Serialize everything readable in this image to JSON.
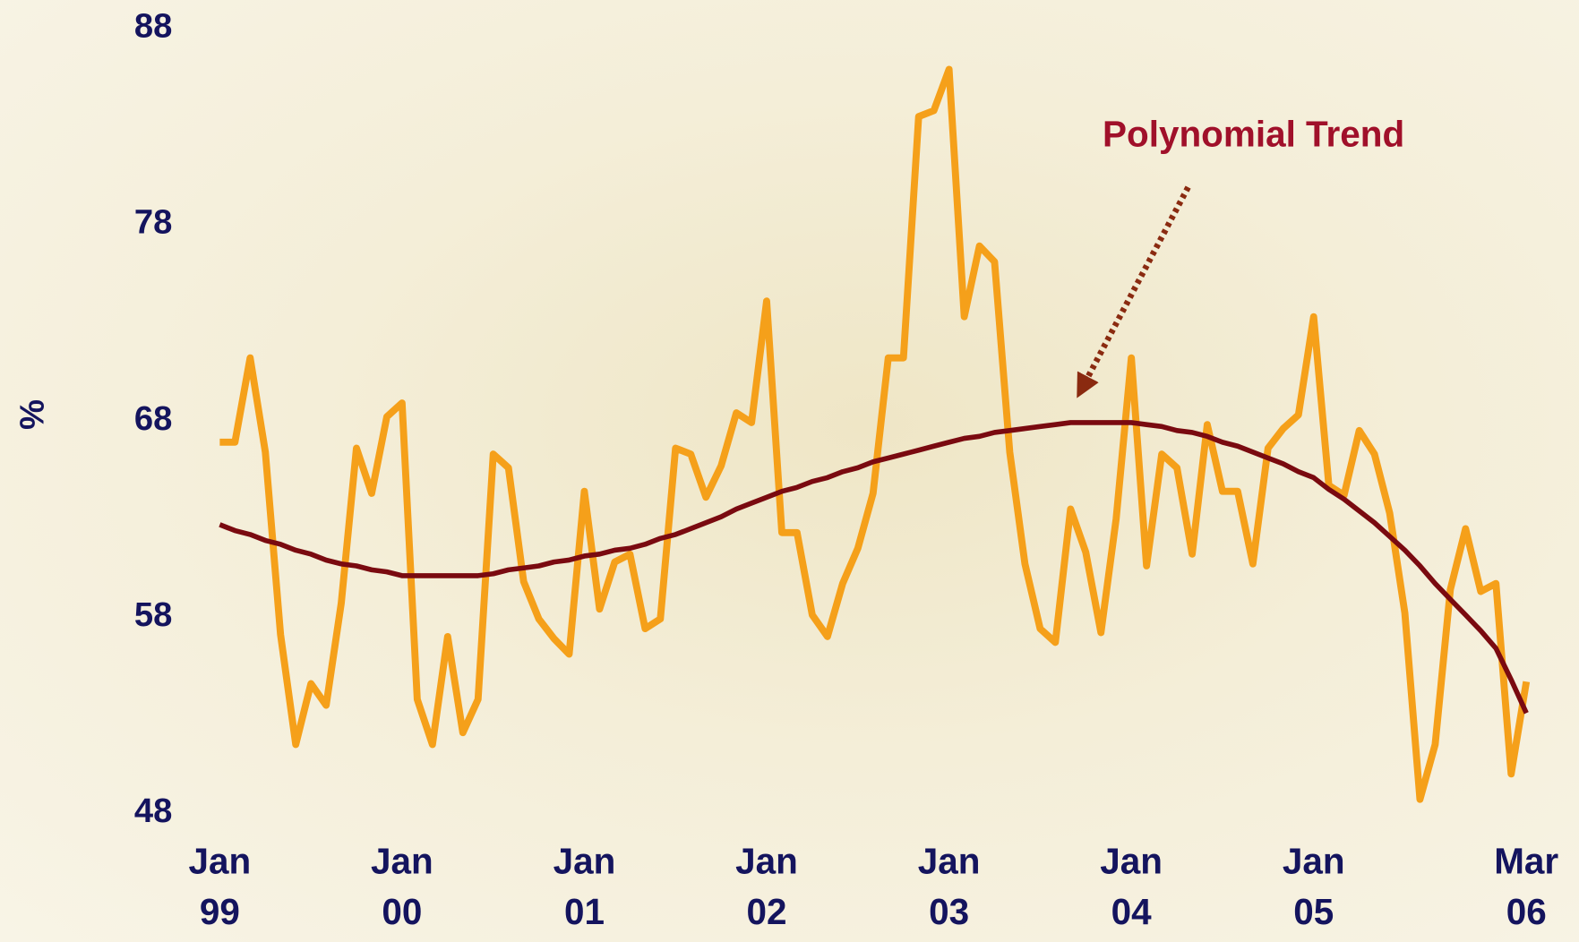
{
  "chart_data": {
    "type": "line",
    "y_label": "%",
    "annotation": "Polynomial Trend",
    "ylim": [
      48,
      88
    ],
    "yticks": [
      48,
      58,
      68,
      78,
      88
    ],
    "categories": [
      "Jan\n99",
      null,
      null,
      null,
      null,
      null,
      null,
      null,
      null,
      null,
      null,
      null,
      "Jan\n00",
      null,
      null,
      null,
      null,
      null,
      null,
      null,
      null,
      null,
      null,
      null,
      "Jan\n01",
      null,
      null,
      null,
      null,
      null,
      null,
      null,
      null,
      null,
      null,
      null,
      "Jan\n02",
      null,
      null,
      null,
      null,
      null,
      null,
      null,
      null,
      null,
      null,
      null,
      "Jan\n03",
      null,
      null,
      null,
      null,
      null,
      null,
      null,
      null,
      null,
      null,
      null,
      "Jan\n04",
      null,
      null,
      null,
      null,
      null,
      null,
      null,
      null,
      null,
      null,
      null,
      "Jan\n05",
      null,
      null,
      null,
      null,
      null,
      null,
      null,
      null,
      null,
      null,
      null,
      null,
      null,
      "Mar\n06"
    ],
    "series": [
      {
        "color": "#f5a01a",
        "values": [
          66.9,
          66.9,
          71.2,
          66.4,
          57.1,
          51.5,
          54.6,
          53.5,
          58.7,
          66.6,
          64.3,
          68.2,
          68.9,
          53.8,
          51.5,
          57.0,
          52.1,
          53.8,
          66.3,
          65.6,
          59.8,
          57.9,
          56.9,
          56.1,
          64.4,
          58.4,
          60.8,
          61.2,
          57.4,
          57.9,
          66.6,
          66.3,
          64.1,
          65.7,
          68.4,
          67.9,
          74.1,
          62.3,
          62.3,
          58.1,
          57.0,
          59.7,
          61.5,
          64.3,
          71.2,
          71.2,
          83.5,
          83.8,
          85.9,
          73.3,
          76.9,
          76.1,
          66.4,
          60.7,
          57.4,
          56.7,
          63.5,
          61.3,
          57.2,
          63.0,
          71.2,
          60.6,
          66.3,
          65.6,
          61.2,
          67.8,
          64.4,
          64.4,
          60.7,
          66.6,
          67.6,
          68.3,
          73.3,
          64.7,
          64.2,
          67.5,
          66.3,
          63.3,
          58.2,
          48.7,
          51.5,
          59.4,
          62.5,
          59.3,
          59.7,
          50.0,
          54.7
        ]
      },
      {
        "name": "Polynomial Trend",
        "color": "#7a0a10",
        "values": [
          62.7,
          62.4,
          62.2,
          61.9,
          61.7,
          61.4,
          61.2,
          60.9,
          60.7,
          60.6,
          60.4,
          60.3,
          60.1,
          60.1,
          60.1,
          60.1,
          60.1,
          60.1,
          60.2,
          60.4,
          60.5,
          60.6,
          60.8,
          60.9,
          61.1,
          61.2,
          61.4,
          61.5,
          61.7,
          62.0,
          62.2,
          62.5,
          62.8,
          63.1,
          63.5,
          63.8,
          64.1,
          64.4,
          64.6,
          64.9,
          65.1,
          65.4,
          65.6,
          65.9,
          66.1,
          66.3,
          66.5,
          66.7,
          66.9,
          67.1,
          67.2,
          67.4,
          67.5,
          67.6,
          67.7,
          67.8,
          67.9,
          67.9,
          67.9,
          67.9,
          67.9,
          67.8,
          67.7,
          67.5,
          67.4,
          67.2,
          66.9,
          66.7,
          66.4,
          66.1,
          65.8,
          65.4,
          65.1,
          64.5,
          64.0,
          63.4,
          62.8,
          62.1,
          61.4,
          60.6,
          59.7,
          58.9,
          58.1,
          57.3,
          56.4,
          54.8,
          53.1
        ]
      }
    ]
  }
}
